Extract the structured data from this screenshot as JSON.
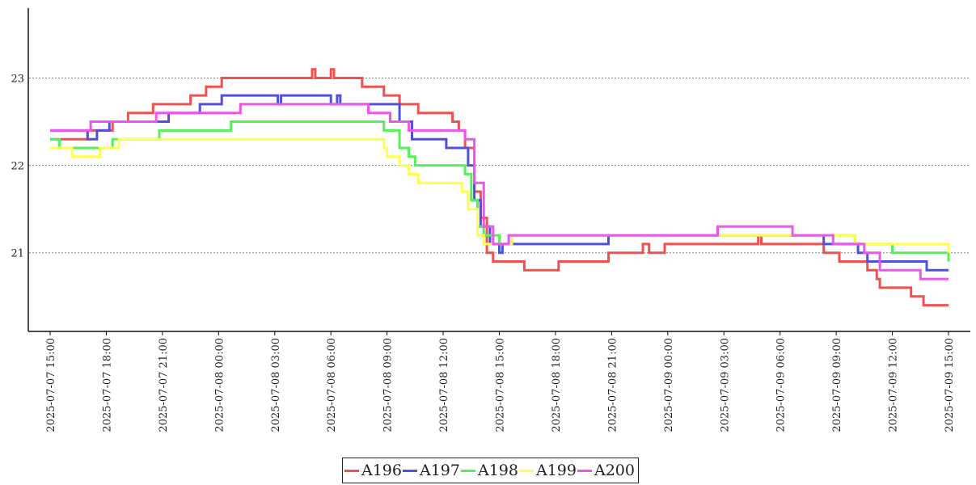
{
  "chart_data": {
    "type": "line",
    "title": "",
    "xlabel": "",
    "ylabel": "",
    "x_ticks": [
      "2025-07-07 15:00",
      "2025-07-07 18:00",
      "2025-07-07 21:00",
      "2025-07-08 00:00",
      "2025-07-08 03:00",
      "2025-07-08 06:00",
      "2025-07-08 09:00",
      "2025-07-08 12:00",
      "2025-07-08 15:00",
      "2025-07-08 18:00",
      "2025-07-08 21:00",
      "2025-07-09 00:00",
      "2025-07-09 03:00",
      "2025-07-09 06:00",
      "2025-07-09 09:00",
      "2025-07-09 12:00",
      "2025-07-09 15:00"
    ],
    "y_ticks": [
      21,
      22,
      23
    ],
    "ylim": [
      20.1,
      23.8
    ],
    "xlim": [
      "2025-07-07 15:00",
      "2025-07-09 15:00"
    ],
    "grid": "horizontal dotted",
    "legend_position": "bottom-center",
    "series": [
      {
        "name": "A196",
        "color": "#f05050",
        "points": [
          [
            "2025-07-07 15:00",
            22.3
          ],
          [
            "2025-07-07 16:30",
            22.3
          ],
          [
            "2025-07-07 17:00",
            22.4
          ],
          [
            "2025-07-07 18:00",
            22.4
          ],
          [
            "2025-07-07 18:20",
            22.5
          ],
          [
            "2025-07-07 19:00",
            22.5
          ],
          [
            "2025-07-07 19:10",
            22.6
          ],
          [
            "2025-07-07 20:00",
            22.6
          ],
          [
            "2025-07-07 20:30",
            22.7
          ],
          [
            "2025-07-07 22:00",
            22.7
          ],
          [
            "2025-07-07 22:30",
            22.8
          ],
          [
            "2025-07-07 23:00",
            22.8
          ],
          [
            "2025-07-07 23:20",
            22.9
          ],
          [
            "2025-07-07 23:50",
            22.9
          ],
          [
            "2025-07-08 00:10",
            23.0
          ],
          [
            "2025-07-08 04:50",
            23.0
          ],
          [
            "2025-07-08 05:00",
            23.1
          ],
          [
            "2025-07-08 05:10",
            23.0
          ],
          [
            "2025-07-08 05:50",
            23.0
          ],
          [
            "2025-07-08 06:00",
            23.1
          ],
          [
            "2025-07-08 06:10",
            23.0
          ],
          [
            "2025-07-08 07:30",
            23.0
          ],
          [
            "2025-07-08 07:40",
            22.9
          ],
          [
            "2025-07-08 08:30",
            22.9
          ],
          [
            "2025-07-08 08:50",
            22.8
          ],
          [
            "2025-07-08 09:30",
            22.8
          ],
          [
            "2025-07-08 09:40",
            22.7
          ],
          [
            "2025-07-08 10:30",
            22.7
          ],
          [
            "2025-07-08 10:40",
            22.6
          ],
          [
            "2025-07-08 12:10",
            22.6
          ],
          [
            "2025-07-08 12:30",
            22.5
          ],
          [
            "2025-07-08 12:50",
            22.4
          ],
          [
            "2025-07-08 13:10",
            22.2
          ],
          [
            "2025-07-08 13:40",
            21.7
          ],
          [
            "2025-07-08 14:00",
            21.4
          ],
          [
            "2025-07-08 14:20",
            21.0
          ],
          [
            "2025-07-08 14:40",
            20.9
          ],
          [
            "2025-07-08 15:00",
            20.9
          ],
          [
            "2025-07-08 16:10",
            20.9
          ],
          [
            "2025-07-08 16:20",
            20.8
          ],
          [
            "2025-07-08 18:00",
            20.8
          ],
          [
            "2025-07-08 18:10",
            20.9
          ],
          [
            "2025-07-08 20:40",
            20.9
          ],
          [
            "2025-07-08 20:50",
            21.0
          ],
          [
            "2025-07-08 22:30",
            21.0
          ],
          [
            "2025-07-08 22:40",
            21.1
          ],
          [
            "2025-07-08 23:00",
            21.0
          ],
          [
            "2025-07-08 23:40",
            21.0
          ],
          [
            "2025-07-08 23:50",
            21.1
          ],
          [
            "2025-07-09 04:40",
            21.1
          ],
          [
            "2025-07-09 04:50",
            21.2
          ],
          [
            "2025-07-09 05:00",
            21.1
          ],
          [
            "2025-07-09 08:10",
            21.1
          ],
          [
            "2025-07-09 08:20",
            21.0
          ],
          [
            "2025-07-09 08:50",
            21.0
          ],
          [
            "2025-07-09 09:10",
            20.9
          ],
          [
            "2025-07-09 10:30",
            20.9
          ],
          [
            "2025-07-09 10:40",
            20.8
          ],
          [
            "2025-07-09 11:10",
            20.7
          ],
          [
            "2025-07-09 11:20",
            20.6
          ],
          [
            "2025-07-09 12:40",
            20.6
          ],
          [
            "2025-07-09 13:00",
            20.5
          ],
          [
            "2025-07-09 13:40",
            20.4
          ],
          [
            "2025-07-09 15:00",
            20.4
          ]
        ]
      },
      {
        "name": "A197",
        "color": "#5050e0",
        "points": [
          [
            "2025-07-07 15:00",
            22.4
          ],
          [
            "2025-07-07 16:50",
            22.4
          ],
          [
            "2025-07-07 17:00",
            22.3
          ],
          [
            "2025-07-07 17:30",
            22.4
          ],
          [
            "2025-07-07 18:00",
            22.4
          ],
          [
            "2025-07-07 18:10",
            22.5
          ],
          [
            "2025-07-07 21:10",
            22.5
          ],
          [
            "2025-07-07 21:20",
            22.6
          ],
          [
            "2025-07-07 22:50",
            22.6
          ],
          [
            "2025-07-07 23:00",
            22.7
          ],
          [
            "2025-07-08 00:00",
            22.7
          ],
          [
            "2025-07-08 00:10",
            22.8
          ],
          [
            "2025-07-08 03:00",
            22.8
          ],
          [
            "2025-07-08 03:10",
            22.7
          ],
          [
            "2025-07-08 03:20",
            22.8
          ],
          [
            "2025-07-08 05:50",
            22.8
          ],
          [
            "2025-07-08 06:00",
            22.7
          ],
          [
            "2025-07-08 06:20",
            22.8
          ],
          [
            "2025-07-08 06:30",
            22.7
          ],
          [
            "2025-07-08 09:30",
            22.7
          ],
          [
            "2025-07-08 09:40",
            22.5
          ],
          [
            "2025-07-08 10:10",
            22.5
          ],
          [
            "2025-07-08 10:20",
            22.3
          ],
          [
            "2025-07-08 12:00",
            22.3
          ],
          [
            "2025-07-08 12:10",
            22.2
          ],
          [
            "2025-07-08 13:00",
            22.2
          ],
          [
            "2025-07-08 13:20",
            22.0
          ],
          [
            "2025-07-08 13:40",
            21.6
          ],
          [
            "2025-07-08 14:00",
            21.3
          ],
          [
            "2025-07-08 14:30",
            21.1
          ],
          [
            "2025-07-08 15:00",
            21.0
          ],
          [
            "2025-07-08 15:10",
            21.1
          ],
          [
            "2025-07-08 20:40",
            21.1
          ],
          [
            "2025-07-08 20:50",
            21.2
          ],
          [
            "2025-07-09 08:00",
            21.2
          ],
          [
            "2025-07-09 08:20",
            21.1
          ],
          [
            "2025-07-09 10:00",
            21.1
          ],
          [
            "2025-07-09 10:10",
            21.0
          ],
          [
            "2025-07-09 10:40",
            20.9
          ],
          [
            "2025-07-09 13:40",
            20.9
          ],
          [
            "2025-07-09 13:50",
            20.8
          ],
          [
            "2025-07-09 15:00",
            20.8
          ]
        ]
      },
      {
        "name": "A198",
        "color": "#55f055",
        "points": [
          [
            "2025-07-07 15:00",
            22.3
          ],
          [
            "2025-07-07 15:30",
            22.2
          ],
          [
            "2025-07-07 18:00",
            22.2
          ],
          [
            "2025-07-07 18:20",
            22.3
          ],
          [
            "2025-07-07 20:40",
            22.3
          ],
          [
            "2025-07-07 20:50",
            22.4
          ],
          [
            "2025-07-08 00:30",
            22.4
          ],
          [
            "2025-07-08 00:40",
            22.5
          ],
          [
            "2025-07-08 08:40",
            22.5
          ],
          [
            "2025-07-08 08:50",
            22.4
          ],
          [
            "2025-07-08 09:30",
            22.4
          ],
          [
            "2025-07-08 09:40",
            22.2
          ],
          [
            "2025-07-08 10:10",
            22.1
          ],
          [
            "2025-07-08 10:30",
            22.0
          ],
          [
            "2025-07-08 12:50",
            22.0
          ],
          [
            "2025-07-08 13:10",
            21.9
          ],
          [
            "2025-07-08 13:30",
            21.6
          ],
          [
            "2025-07-08 13:50",
            21.3
          ],
          [
            "2025-07-08 14:10",
            21.2
          ],
          [
            "2025-07-08 15:00",
            21.1
          ],
          [
            "2025-07-08 15:30",
            21.2
          ],
          [
            "2025-07-08 23:00",
            21.2
          ],
          [
            "2025-07-09 09:00",
            21.2
          ],
          [
            "2025-07-09 10:00",
            21.1
          ],
          [
            "2025-07-09 12:00",
            21.0
          ],
          [
            "2025-07-09 15:00",
            20.9
          ]
        ]
      },
      {
        "name": "A199",
        "color": "#ffff50",
        "points": [
          [
            "2025-07-07 15:00",
            22.2
          ],
          [
            "2025-07-07 16:00",
            22.2
          ],
          [
            "2025-07-07 16:10",
            22.1
          ],
          [
            "2025-07-07 17:30",
            22.1
          ],
          [
            "2025-07-07 17:40",
            22.2
          ],
          [
            "2025-07-07 18:30",
            22.2
          ],
          [
            "2025-07-07 18:40",
            22.3
          ],
          [
            "2025-07-08 08:40",
            22.3
          ],
          [
            "2025-07-08 08:50",
            22.2
          ],
          [
            "2025-07-08 09:00",
            22.1
          ],
          [
            "2025-07-08 09:30",
            22.1
          ],
          [
            "2025-07-08 09:40",
            22.0
          ],
          [
            "2025-07-08 10:10",
            21.9
          ],
          [
            "2025-07-08 10:40",
            21.8
          ],
          [
            "2025-07-08 12:40",
            21.8
          ],
          [
            "2025-07-08 13:00",
            21.7
          ],
          [
            "2025-07-08 13:20",
            21.5
          ],
          [
            "2025-07-08 13:50",
            21.2
          ],
          [
            "2025-07-08 14:10",
            21.1
          ],
          [
            "2025-07-08 15:30",
            21.1
          ],
          [
            "2025-07-08 15:40",
            21.2
          ],
          [
            "2025-07-09 09:30",
            21.2
          ],
          [
            "2025-07-09 10:00",
            21.1
          ],
          [
            "2025-07-09 15:00",
            21.0
          ]
        ]
      },
      {
        "name": "A200",
        "color": "#ee55ee",
        "points": [
          [
            "2025-07-07 15:00",
            22.4
          ],
          [
            "2025-07-07 17:00",
            22.4
          ],
          [
            "2025-07-07 17:10",
            22.5
          ],
          [
            "2025-07-07 20:30",
            22.5
          ],
          [
            "2025-07-07 20:40",
            22.6
          ],
          [
            "2025-07-08 01:00",
            22.6
          ],
          [
            "2025-07-08 01:10",
            22.7
          ],
          [
            "2025-07-08 07:50",
            22.7
          ],
          [
            "2025-07-08 08:00",
            22.6
          ],
          [
            "2025-07-08 09:00",
            22.6
          ],
          [
            "2025-07-08 09:10",
            22.5
          ],
          [
            "2025-07-08 10:00",
            22.5
          ],
          [
            "2025-07-08 10:10",
            22.4
          ],
          [
            "2025-07-08 13:10",
            22.3
          ],
          [
            "2025-07-08 13:40",
            21.8
          ],
          [
            "2025-07-08 14:10",
            21.3
          ],
          [
            "2025-07-08 14:40",
            21.1
          ],
          [
            "2025-07-08 15:00",
            21.1
          ],
          [
            "2025-07-08 15:30",
            21.2
          ],
          [
            "2025-07-09 02:30",
            21.2
          ],
          [
            "2025-07-09 02:40",
            21.3
          ],
          [
            "2025-07-09 06:30",
            21.3
          ],
          [
            "2025-07-09 06:40",
            21.2
          ],
          [
            "2025-07-09 08:30",
            21.2
          ],
          [
            "2025-07-09 08:50",
            21.1
          ],
          [
            "2025-07-09 10:10",
            21.1
          ],
          [
            "2025-07-09 10:30",
            21.0
          ],
          [
            "2025-07-09 11:20",
            20.8
          ],
          [
            "2025-07-09 13:20",
            20.8
          ],
          [
            "2025-07-09 13:30",
            20.7
          ],
          [
            "2025-07-09 15:00",
            20.7
          ]
        ]
      }
    ]
  }
}
